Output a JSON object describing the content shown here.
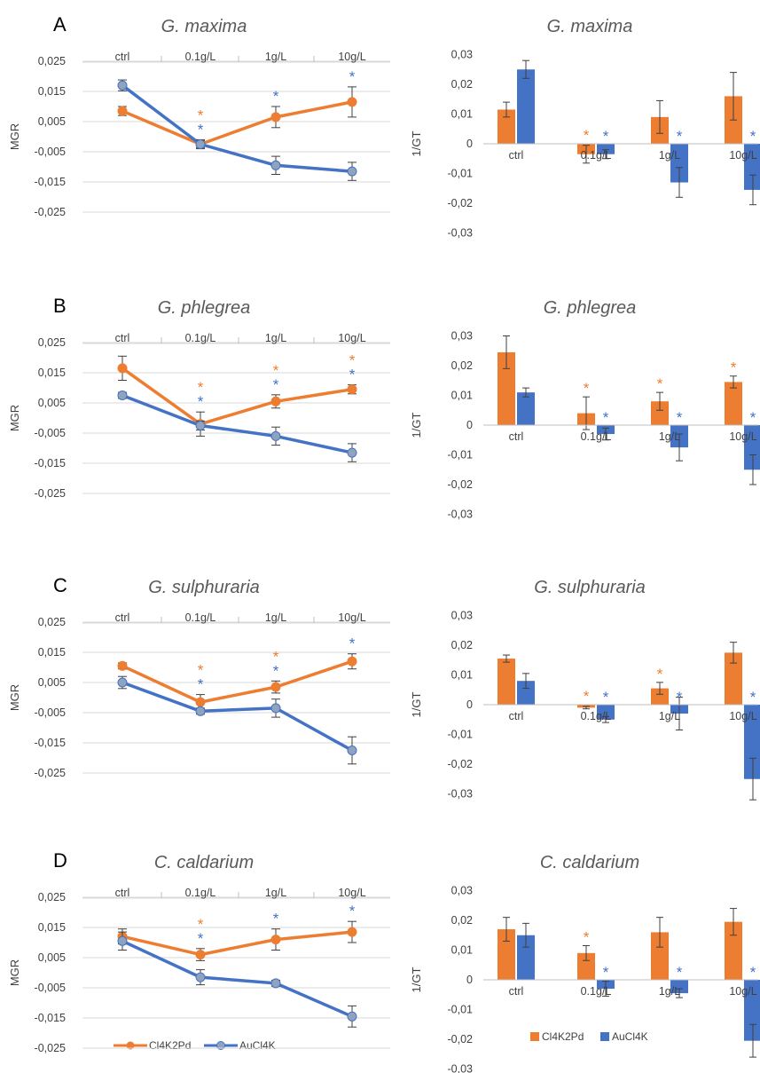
{
  "colors": {
    "orange": "#ED7D31",
    "blue": "#4472C4",
    "marker_blue": "#8FA3BF",
    "grid": "#D9D9D9",
    "axis": "#BFBFBF",
    "err": "#404040"
  },
  "categories": [
    "ctrl",
    "0.1g/L",
    "1g/L",
    "10g/L"
  ],
  "legend": {
    "series": [
      "Cl4K2Pd",
      "AuCl4K"
    ]
  },
  "line_ticks": [
    "0,025",
    "0,015",
    "0,005",
    "-0,005",
    "-0,015",
    "-0,025"
  ],
  "bar_ticks": [
    "0,03",
    "0,02",
    "0,01",
    "0",
    "-0,01",
    "-0,02",
    "-0,03"
  ],
  "panels": [
    {
      "label": "A",
      "line": {
        "title": "G. maxima",
        "ylabel": "MGR",
        "orange": [
          0.0085,
          -0.0025,
          0.0065,
          0.0115
        ],
        "orange_err": [
          0.0015,
          0.0012,
          0.0035,
          0.005
        ],
        "blue": [
          0.017,
          -0.0025,
          -0.0095,
          -0.0115
        ],
        "blue_err": [
          0.0018,
          0.0015,
          0.003,
          0.003
        ],
        "orange_star": [
          false,
          true,
          false,
          false
        ],
        "blue_star": [
          false,
          true,
          true,
          true
        ]
      },
      "bar": {
        "title": "G. maxima",
        "ylabel": "1/GT",
        "orange": [
          0.0115,
          -0.0035,
          0.009,
          0.016
        ],
        "orange_err": [
          0.0025,
          0.003,
          0.0055,
          0.008
        ],
        "blue": [
          0.025,
          -0.0035,
          -0.013,
          -0.0155
        ],
        "blue_err": [
          0.003,
          0.0015,
          0.005,
          0.005
        ],
        "orange_star": [
          false,
          true,
          false,
          false
        ],
        "blue_star": [
          false,
          true,
          true,
          true
        ]
      }
    },
    {
      "label": "B",
      "line": {
        "title": "G. phlegrea",
        "ylabel": "MGR",
        "orange": [
          0.0165,
          -0.002,
          0.0055,
          0.0095
        ],
        "orange_err": [
          0.004,
          0.004,
          0.0022,
          0.0015
        ],
        "blue": [
          0.0075,
          -0.0025,
          -0.006,
          -0.0115
        ],
        "blue_err": [
          0.001,
          0.0015,
          0.003,
          0.003
        ],
        "orange_star": [
          false,
          true,
          true,
          true
        ],
        "blue_star": [
          false,
          true,
          true,
          true
        ]
      },
      "bar": {
        "title": "G. phlegrea",
        "ylabel": "1/GT",
        "orange": [
          0.0245,
          0.004,
          0.008,
          0.0145
        ],
        "orange_err": [
          0.0055,
          0.0055,
          0.003,
          0.002
        ],
        "blue": [
          0.011,
          -0.003,
          -0.0075,
          -0.015
        ],
        "blue_err": [
          0.0015,
          0.002,
          0.0045,
          0.005
        ],
        "orange_star": [
          false,
          true,
          true,
          true
        ],
        "blue_star": [
          false,
          true,
          true,
          true
        ]
      }
    },
    {
      "label": "C",
      "line": {
        "title": "G. sulphuraria",
        "ylabel": "MGR",
        "orange": [
          0.0105,
          -0.0015,
          0.0035,
          0.012
        ],
        "orange_err": [
          0.001,
          0.0025,
          0.002,
          0.0025
        ],
        "blue": [
          0.005,
          -0.0045,
          -0.0035,
          -0.0175
        ],
        "blue_err": [
          0.002,
          0.001,
          0.003,
          0.0045
        ],
        "orange_star": [
          false,
          true,
          true,
          false
        ],
        "blue_star": [
          false,
          true,
          true,
          true
        ]
      },
      "bar": {
        "title": "G. sulphuraria",
        "ylabel": "1/GT",
        "orange": [
          0.0155,
          -0.001,
          0.0055,
          0.0175
        ],
        "orange_err": [
          0.0012,
          0.0004,
          0.002,
          0.0035
        ],
        "blue": [
          0.008,
          -0.005,
          -0.003,
          -0.025
        ],
        "blue_err": [
          0.0025,
          0.001,
          0.0055,
          0.007
        ],
        "orange_star": [
          false,
          true,
          true,
          false
        ],
        "blue_star": [
          false,
          true,
          true,
          true
        ]
      }
    },
    {
      "label": "D",
      "line": {
        "title": "C. caldarium",
        "ylabel": "MGR",
        "orange": [
          0.012,
          0.006,
          0.011,
          0.0135
        ],
        "orange_err": [
          0.0025,
          0.002,
          0.0035,
          0.0035
        ],
        "blue": [
          0.0105,
          -0.0015,
          -0.0035,
          -0.0145
        ],
        "blue_err": [
          0.003,
          0.0025,
          0.001,
          0.0035
        ],
        "orange_star": [
          false,
          true,
          false,
          false
        ],
        "blue_star": [
          false,
          true,
          true,
          true
        ]
      },
      "bar": {
        "title": "C. caldarium",
        "ylabel": "1/GT",
        "orange": [
          0.017,
          0.009,
          0.016,
          0.0195
        ],
        "orange_err": [
          0.004,
          0.0025,
          0.005,
          0.0045
        ],
        "blue": [
          0.015,
          -0.003,
          -0.0045,
          -0.0205
        ],
        "blue_err": [
          0.004,
          0.0025,
          0.0015,
          0.0055
        ],
        "orange_star": [
          false,
          true,
          false,
          false
        ],
        "blue_star": [
          false,
          true,
          true,
          true
        ]
      }
    }
  ],
  "chart_data": [
    {
      "type": "line",
      "title": "G. maxima",
      "ylabel": "MGR",
      "categories": [
        "ctrl",
        "0.1g/L",
        "1g/L",
        "10g/L"
      ],
      "ylim": [
        -0.025,
        0.025
      ],
      "series": [
        {
          "name": "Cl4K2Pd",
          "values": [
            0.0085,
            -0.0025,
            0.0065,
            0.0115
          ]
        },
        {
          "name": "AuCl4K",
          "values": [
            0.017,
            -0.0025,
            -0.0095,
            -0.0115
          ]
        }
      ]
    },
    {
      "type": "bar",
      "title": "G. maxima",
      "ylabel": "1/GT",
      "categories": [
        "ctrl",
        "0.1g/L",
        "1g/L",
        "10g/L"
      ],
      "ylim": [
        -0.03,
        0.03
      ],
      "series": [
        {
          "name": "Cl4K2Pd",
          "values": [
            0.0115,
            -0.0035,
            0.009,
            0.016
          ]
        },
        {
          "name": "AuCl4K",
          "values": [
            0.025,
            -0.0035,
            -0.013,
            -0.0155
          ]
        }
      ]
    },
    {
      "type": "line",
      "title": "G. phlegrea",
      "ylabel": "MGR",
      "categories": [
        "ctrl",
        "0.1g/L",
        "1g/L",
        "10g/L"
      ],
      "ylim": [
        -0.025,
        0.025
      ],
      "series": [
        {
          "name": "Cl4K2Pd",
          "values": [
            0.0165,
            -0.002,
            0.0055,
            0.0095
          ]
        },
        {
          "name": "AuCl4K",
          "values": [
            0.0075,
            -0.0025,
            -0.006,
            -0.0115
          ]
        }
      ]
    },
    {
      "type": "bar",
      "title": "G. phlegrea",
      "ylabel": "1/GT",
      "categories": [
        "ctrl",
        "0.1g/L",
        "1g/L",
        "10g/L"
      ],
      "ylim": [
        -0.03,
        0.03
      ],
      "series": [
        {
          "name": "Cl4K2Pd",
          "values": [
            0.0245,
            0.004,
            0.008,
            0.0145
          ]
        },
        {
          "name": "AuCl4K",
          "values": [
            0.011,
            -0.003,
            -0.0075,
            -0.015
          ]
        }
      ]
    },
    {
      "type": "line",
      "title": "G. sulphuraria",
      "ylabel": "MGR",
      "categories": [
        "ctrl",
        "0.1g/L",
        "1g/L",
        "10g/L"
      ],
      "ylim": [
        -0.025,
        0.025
      ],
      "series": [
        {
          "name": "Cl4K2Pd",
          "values": [
            0.0105,
            -0.0015,
            0.0035,
            0.012
          ]
        },
        {
          "name": "AuCl4K",
          "values": [
            0.005,
            -0.0045,
            -0.0035,
            -0.0175
          ]
        }
      ]
    },
    {
      "type": "bar",
      "title": "G. sulphuraria",
      "ylabel": "1/GT",
      "categories": [
        "ctrl",
        "0.1g/L",
        "1g/L",
        "10g/L"
      ],
      "ylim": [
        -0.03,
        0.03
      ],
      "series": [
        {
          "name": "Cl4K2Pd",
          "values": [
            0.0155,
            -0.001,
            0.0055,
            0.0175
          ]
        },
        {
          "name": "AuCl4K",
          "values": [
            0.008,
            -0.005,
            -0.003,
            -0.025
          ]
        }
      ]
    },
    {
      "type": "line",
      "title": "C. caldarium",
      "ylabel": "MGR",
      "categories": [
        "ctrl",
        "0.1g/L",
        "1g/L",
        "10g/L"
      ],
      "ylim": [
        -0.025,
        0.025
      ],
      "series": [
        {
          "name": "Cl4K2Pd",
          "values": [
            0.012,
            0.006,
            0.011,
            0.0135
          ]
        },
        {
          "name": "AuCl4K",
          "values": [
            0.0105,
            -0.0015,
            -0.0035,
            -0.0145
          ]
        }
      ]
    },
    {
      "type": "bar",
      "title": "C. caldarium",
      "ylabel": "1/GT",
      "categories": [
        "ctrl",
        "0.1g/L",
        "1g/L",
        "10g/L"
      ],
      "ylim": [
        -0.03,
        0.03
      ],
      "series": [
        {
          "name": "Cl4K2Pd",
          "values": [
            0.017,
            0.009,
            0.016,
            0.0195
          ]
        },
        {
          "name": "AuCl4K",
          "values": [
            0.015,
            -0.003,
            -0.0045,
            -0.0205
          ]
        }
      ]
    }
  ]
}
